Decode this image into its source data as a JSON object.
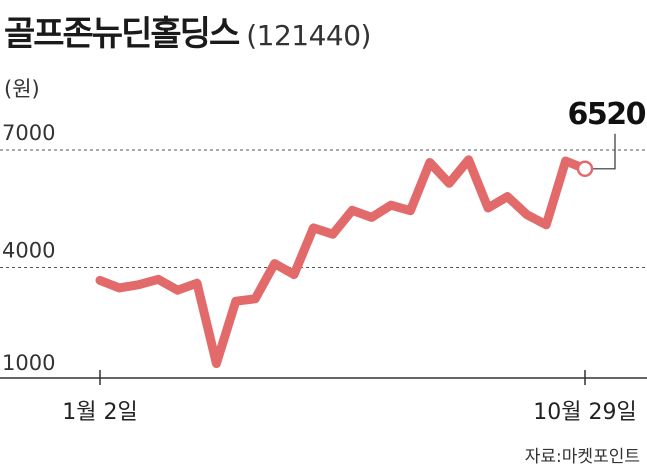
{
  "header": {
    "title": "골프존뉴딘홀딩스",
    "code": "(121440)"
  },
  "chart_data": {
    "type": "line",
    "unit_label": "(원)",
    "y_ticks": [
      "7000",
      "4000",
      "1000"
    ],
    "ylim": [
      1000,
      7000
    ],
    "grid": true,
    "x_tick_labels": [
      "1월 2일",
      "10월 29일"
    ],
    "last_value_label": "6520",
    "source": "자료:마켓포인트",
    "color": "#e36a6a",
    "series": [
      {
        "values": [
          3670,
          3480,
          3560,
          3700,
          3420,
          3600,
          1550,
          3140,
          3200,
          4100,
          3820,
          5010,
          4850,
          5460,
          5280,
          5590,
          5450,
          6680,
          6150,
          6750,
          5520,
          5810,
          5350,
          5090,
          6720,
          6520
        ]
      }
    ]
  }
}
